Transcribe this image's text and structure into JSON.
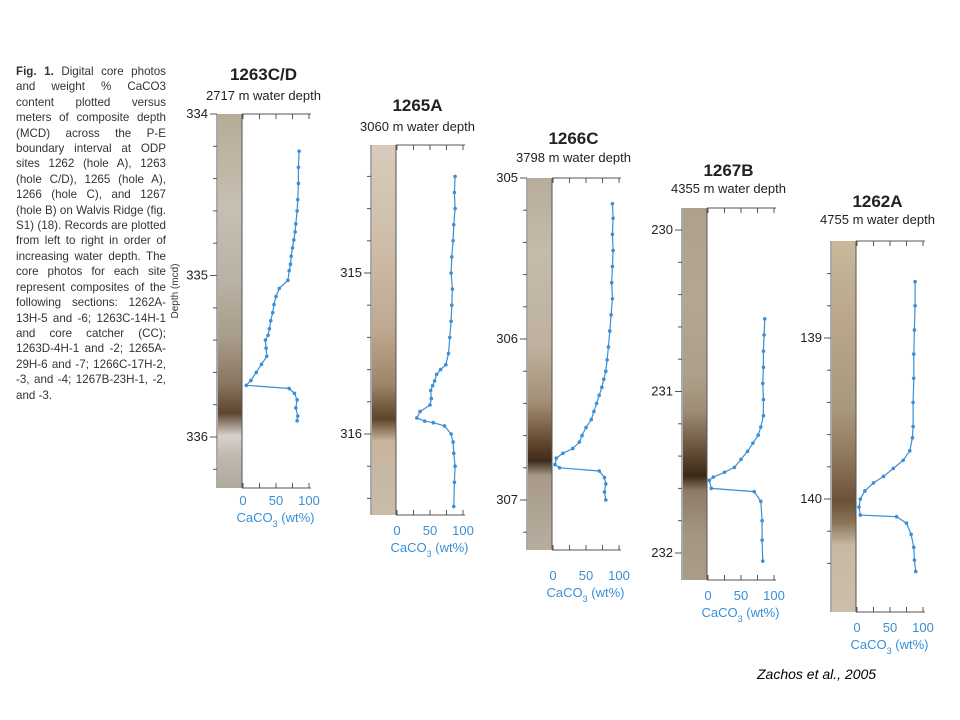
{
  "caption": {
    "fig_label": "Fig. 1.",
    "text": "Digital core photos and weight % CaCO3 content plotted versus meters of composite depth (MCD) across the P-E boundary interval at ODP sites 1262 (hole A), 1263 (hole C/D), 1265 (hole A), 1266 (hole C), and 1267 (hole B) on Walvis Ridge (fig. S1) (18). Records are plotted from left to right in order of increasing water depth. The core photos for each site represent composites of the following sections: 1262A-13H-5 and -6; 1263C-14H-1 and core catcher (CC); 1263D-4H-1 and -2; 1265A-29H-6 and -7; 1266C-17H-2, -3, and -4; 1267B-23H-1, -2, and -3."
  },
  "citation": "Zachos et al., 2005",
  "colors": {
    "series": "#3a8fd6",
    "axis": "#555555",
    "text": "#222222"
  },
  "chart_data": [
    {
      "type": "line",
      "title": "1263C/D",
      "subtitle": "2717 m water depth",
      "ylabel": "Depth (mcd)",
      "xlabel": "CaCO3 (wt%)",
      "xlim": [
        0,
        100
      ],
      "xticks": [
        "0",
        "50",
        "100"
      ],
      "ylim": [
        334,
        336.3
      ],
      "yticks": [
        "334",
        "335",
        "336"
      ],
      "core_photo": {
        "colors": [
          "#b7ab98",
          "#c7bfb2",
          "#b9b1a4",
          "#a89c8a",
          "#8a7560",
          "#5e4632",
          "#d7d2cc",
          "#bdb7ae",
          "#b0a99d"
        ],
        "stops": [
          0,
          0.25,
          0.45,
          0.6,
          0.72,
          0.8,
          0.86,
          0.92,
          1
        ]
      },
      "series": [
        {
          "points": [
            [
              85,
              334.23
            ],
            [
              84,
              334.33
            ],
            [
              84,
              334.43
            ],
            [
              83,
              334.53
            ],
            [
              82,
              334.6
            ],
            [
              80,
              334.68
            ],
            [
              79,
              334.73
            ],
            [
              77,
              334.78
            ],
            [
              75,
              334.83
            ],
            [
              73,
              334.88
            ],
            [
              72,
              334.93
            ],
            [
              70,
              334.97
            ],
            [
              68,
              335.03
            ],
            [
              55,
              335.08
            ],
            [
              50,
              335.13
            ],
            [
              47,
              335.18
            ],
            [
              45,
              335.23
            ],
            [
              42,
              335.28
            ],
            [
              40,
              335.33
            ],
            [
              38,
              335.37
            ],
            [
              34,
              335.4
            ],
            [
              35,
              335.45
            ],
            [
              36,
              335.5
            ],
            [
              28,
              335.55
            ],
            [
              20,
              335.6
            ],
            [
              12,
              335.65
            ],
            [
              5,
              335.68
            ],
            [
              70,
              335.7
            ],
            [
              78,
              335.73
            ],
            [
              82,
              335.77
            ],
            [
              80,
              335.82
            ],
            [
              83,
              335.87
            ],
            [
              82,
              335.9
            ]
          ]
        }
      ]
    },
    {
      "type": "line",
      "title": "1265A",
      "subtitle": "3060 m water depth",
      "ylabel": "",
      "xlabel": "CaCO3 (wt%)",
      "xlim": [
        0,
        100
      ],
      "xticks": [
        "0",
        "50",
        "100"
      ],
      "ylim": [
        314.22,
        316.6
      ],
      "yticks": [
        "315",
        "316"
      ],
      "core_photo": {
        "colors": [
          "#d9cbbb",
          "#ccbba6",
          "#bfa890",
          "#9c8468",
          "#5e4329",
          "#c9b49c",
          "#c7b8a6",
          "#cbbcaa"
        ],
        "stops": [
          0,
          0.3,
          0.5,
          0.65,
          0.74,
          0.8,
          0.9,
          1
        ]
      },
      "series": [
        {
          "points": [
            [
              88,
              314.4
            ],
            [
              87,
              314.5
            ],
            [
              88,
              314.6
            ],
            [
              86,
              314.7
            ],
            [
              85,
              314.8
            ],
            [
              83,
              314.9
            ],
            [
              82,
              315.0
            ],
            [
              84,
              315.1
            ],
            [
              83,
              315.2
            ],
            [
              82,
              315.3
            ],
            [
              80,
              315.4
            ],
            [
              78,
              315.5
            ],
            [
              74,
              315.57
            ],
            [
              66,
              315.6
            ],
            [
              60,
              315.63
            ],
            [
              57,
              315.67
            ],
            [
              54,
              315.7
            ],
            [
              51,
              315.73
            ],
            [
              52,
              315.78
            ],
            [
              50,
              315.82
            ],
            [
              35,
              315.86
            ],
            [
              30,
              315.9
            ],
            [
              42,
              315.92
            ],
            [
              55,
              315.93
            ],
            [
              72,
              315.95
            ],
            [
              82,
              316.0
            ],
            [
              85,
              316.05
            ],
            [
              86,
              316.12
            ],
            [
              88,
              316.2
            ],
            [
              87,
              316.3
            ],
            [
              86,
              316.45
            ]
          ]
        }
      ]
    },
    {
      "type": "line",
      "title": "1266C",
      "subtitle": "3798 m water depth",
      "ylabel": "",
      "xlabel": "CaCO3 (wt%)",
      "xlim": [
        0,
        100
      ],
      "xticks": [
        "0",
        "50",
        "100"
      ],
      "ylim": [
        305,
        307.35
      ],
      "yticks": [
        "305",
        "306",
        "307"
      ],
      "core_photo": {
        "colors": [
          "#b8ad9c",
          "#c5bba9",
          "#beb29f",
          "#a59077",
          "#6a4e33",
          "#3d2a1a",
          "#a6998a",
          "#b0a494",
          "#b8ad9f"
        ],
        "stops": [
          0,
          0.2,
          0.45,
          0.6,
          0.7,
          0.76,
          0.8,
          0.9,
          1
        ]
      },
      "series": [
        {
          "points": [
            [
              90,
              305.16
            ],
            [
              91,
              305.25
            ],
            [
              90,
              305.35
            ],
            [
              91,
              305.45
            ],
            [
              90,
              305.55
            ],
            [
              89,
              305.65
            ],
            [
              90,
              305.75
            ],
            [
              88,
              305.85
            ],
            [
              86,
              305.95
            ],
            [
              84,
              306.05
            ],
            [
              82,
              306.13
            ],
            [
              80,
              306.2
            ],
            [
              77,
              306.25
            ],
            [
              74,
              306.3
            ],
            [
              70,
              306.35
            ],
            [
              66,
              306.4
            ],
            [
              62,
              306.45
            ],
            [
              58,
              306.5
            ],
            [
              50,
              306.55
            ],
            [
              44,
              306.6
            ],
            [
              40,
              306.64
            ],
            [
              30,
              306.68
            ],
            [
              15,
              306.71
            ],
            [
              5,
              306.74
            ],
            [
              3,
              306.78
            ],
            [
              10,
              306.8
            ],
            [
              70,
              306.82
            ],
            [
              78,
              306.86
            ],
            [
              80,
              306.9
            ],
            [
              78,
              306.95
            ],
            [
              80,
              307.0
            ]
          ]
        }
      ]
    },
    {
      "type": "line",
      "title": "1267B",
      "subtitle": "4355 m water depth",
      "ylabel": "",
      "xlabel": "CaCO3 (wt%)",
      "xlim": [
        0,
        100
      ],
      "xticks": [
        "0",
        "50",
        "100"
      ],
      "ylim": [
        229.88,
        232.3
      ],
      "yticks": [
        "230",
        "231",
        "232"
      ],
      "core_photo": {
        "colors": [
          "#aea18c",
          "#b3a693",
          "#ada08a",
          "#9c8c74",
          "#665038",
          "#3a2818",
          "#8d7b66",
          "#a39782",
          "#aa9c88"
        ],
        "stops": [
          0,
          0.25,
          0.45,
          0.55,
          0.65,
          0.72,
          0.76,
          0.88,
          1
        ]
      },
      "series": [
        {
          "points": [
            [
              86,
              230.55
            ],
            [
              85,
              230.65
            ],
            [
              84,
              230.75
            ],
            [
              84,
              230.85
            ],
            [
              83,
              230.95
            ],
            [
              84,
              231.05
            ],
            [
              84,
              231.15
            ],
            [
              80,
              231.22
            ],
            [
              76,
              231.27
            ],
            [
              68,
              231.32
            ],
            [
              60,
              231.37
            ],
            [
              50,
              231.42
            ],
            [
              40,
              231.47
            ],
            [
              25,
              231.5
            ],
            [
              8,
              231.53
            ],
            [
              2,
              231.55
            ],
            [
              5,
              231.6
            ],
            [
              70,
              231.62
            ],
            [
              80,
              231.68
            ],
            [
              82,
              231.8
            ],
            [
              82,
              231.92
            ],
            [
              83,
              232.05
            ]
          ]
        }
      ]
    },
    {
      "type": "line",
      "title": "1262A",
      "subtitle": "4755 m water depth",
      "ylabel": "",
      "xlabel": "CaCO3 (wt%)",
      "xlim": [
        0,
        100
      ],
      "xticks": [
        "0",
        "50",
        "100"
      ],
      "ylim": [
        138.55,
        140.58
      ],
      "yticks": [
        "139",
        "140"
      ],
      "core_photo": {
        "colors": [
          "#c9b89c",
          "#bba88c",
          "#aa987c",
          "#8a7356",
          "#6a5038",
          "#8b7559",
          "#c7b9a3",
          "#cbbfab"
        ],
        "stops": [
          0,
          0.2,
          0.45,
          0.6,
          0.7,
          0.76,
          0.82,
          1
        ]
      },
      "series": [
        {
          "points": [
            [
              88,
              138.65
            ],
            [
              88,
              138.8
            ],
            [
              87,
              138.95
            ],
            [
              86,
              139.1
            ],
            [
              86,
              139.25
            ],
            [
              85,
              139.4
            ],
            [
              85,
              139.55
            ],
            [
              84,
              139.62
            ],
            [
              80,
              139.7
            ],
            [
              70,
              139.76
            ],
            [
              55,
              139.81
            ],
            [
              40,
              139.86
            ],
            [
              25,
              139.9
            ],
            [
              12,
              139.95
            ],
            [
              5,
              140.0
            ],
            [
              3,
              140.05
            ],
            [
              5,
              140.1
            ],
            [
              60,
              140.11
            ],
            [
              75,
              140.15
            ],
            [
              82,
              140.22
            ],
            [
              86,
              140.3
            ],
            [
              87,
              140.38
            ],
            [
              89,
              140.45
            ]
          ]
        }
      ]
    }
  ]
}
